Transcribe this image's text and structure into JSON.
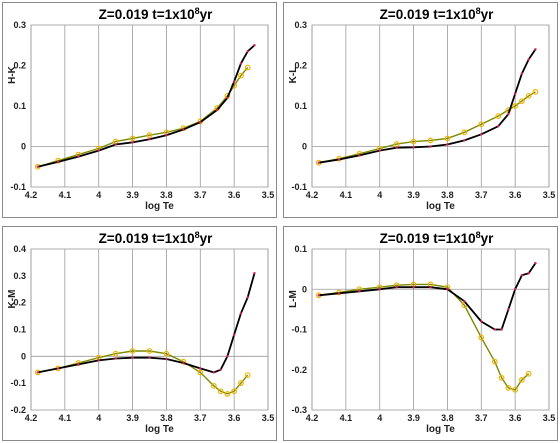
{
  "chart_data": [
    {
      "type": "line",
      "title": {
        "main": "Z=0.019   t=1x10",
        "sup": "8",
        "tail": "yr"
      },
      "xlabel": "log Te",
      "ylabel": "H-K",
      "xlim": [
        4.2,
        3.5
      ],
      "ylim": [
        -0.1,
        0.3
      ],
      "xticks": [
        4.2,
        4.1,
        4.0,
        3.9,
        3.8,
        3.7,
        3.6,
        3.5
      ],
      "xtick_labels": [
        "4.2",
        "4.1",
        "4",
        "3.9",
        "3.8",
        "3.7",
        "3.6",
        "3.5"
      ],
      "yticks": [
        -0.1,
        0,
        0.1,
        0.2,
        0.3
      ],
      "ytick_labels": [
        "-0.1",
        "0",
        "0.1",
        "0.2",
        "0.3"
      ],
      "grid": "vertical",
      "series": [
        {
          "color": "#000000",
          "marker_color": "#d81b60",
          "marker": "dot",
          "x": [
            4.18,
            4.12,
            4.06,
            4.0,
            3.95,
            3.9,
            3.85,
            3.8,
            3.75,
            3.7,
            3.65,
            3.62,
            3.6,
            3.58,
            3.56,
            3.54
          ],
          "y": [
            -0.05,
            -0.038,
            -0.025,
            -0.01,
            0.005,
            0.01,
            0.018,
            0.028,
            0.042,
            0.06,
            0.09,
            0.12,
            0.16,
            0.205,
            0.235,
            0.25
          ]
        },
        {
          "color": "#7a8a00",
          "marker_color": "#f0b400",
          "marker": "circle",
          "x": [
            4.18,
            4.12,
            4.06,
            4.0,
            3.95,
            3.9,
            3.85,
            3.8,
            3.75,
            3.7,
            3.65,
            3.62,
            3.6,
            3.58,
            3.56
          ],
          "y": [
            -0.05,
            -0.035,
            -0.02,
            -0.005,
            0.012,
            0.02,
            0.028,
            0.035,
            0.045,
            0.062,
            0.095,
            0.125,
            0.15,
            0.175,
            0.195
          ]
        }
      ]
    },
    {
      "type": "line",
      "title": {
        "main": "Z=0.019   t=1x10",
        "sup": "8",
        "tail": "yr"
      },
      "xlabel": "log Te",
      "ylabel": "K-L",
      "xlim": [
        4.2,
        3.5
      ],
      "ylim": [
        -0.1,
        0.3
      ],
      "xticks": [
        4.2,
        4.1,
        4.0,
        3.9,
        3.8,
        3.7,
        3.6,
        3.5
      ],
      "xtick_labels": [
        "4.2",
        "4.1",
        "4",
        "3.9",
        "3.8",
        "3.7",
        "3.6",
        "3.5"
      ],
      "yticks": [
        -0.1,
        0,
        0.1,
        0.2,
        0.3
      ],
      "ytick_labels": [
        "-0.1",
        "0",
        "0.1",
        "0.2",
        "0.3"
      ],
      "grid": "vertical",
      "series": [
        {
          "color": "#000000",
          "marker_color": "#d81b60",
          "marker": "dot",
          "x": [
            4.18,
            4.12,
            4.06,
            4.0,
            3.95,
            3.9,
            3.85,
            3.8,
            3.75,
            3.7,
            3.65,
            3.62,
            3.6,
            3.58,
            3.56,
            3.54
          ],
          "y": [
            -0.04,
            -0.032,
            -0.022,
            -0.01,
            -0.003,
            -0.002,
            0.0,
            0.005,
            0.015,
            0.03,
            0.05,
            0.08,
            0.13,
            0.18,
            0.215,
            0.24
          ]
        },
        {
          "color": "#7a8a00",
          "marker_color": "#f0b400",
          "marker": "circle",
          "x": [
            4.18,
            4.12,
            4.06,
            4.0,
            3.95,
            3.9,
            3.85,
            3.8,
            3.75,
            3.7,
            3.65,
            3.62,
            3.6,
            3.58,
            3.56,
            3.54
          ],
          "y": [
            -0.04,
            -0.03,
            -0.018,
            -0.005,
            0.006,
            0.012,
            0.015,
            0.02,
            0.035,
            0.055,
            0.075,
            0.09,
            0.1,
            0.112,
            0.125,
            0.135
          ]
        }
      ]
    },
    {
      "type": "line",
      "title": {
        "main": "Z=0.019   t=1x10",
        "sup": "8",
        "tail": "yr"
      },
      "xlabel": "log Te",
      "ylabel": "K-M",
      "xlim": [
        4.2,
        3.5
      ],
      "ylim": [
        -0.2,
        0.4
      ],
      "xticks": [
        4.2,
        4.1,
        4.0,
        3.9,
        3.8,
        3.7,
        3.6,
        3.5
      ],
      "xtick_labels": [
        "4.2",
        "4.1",
        "4",
        "3.9",
        "3.8",
        "3.7",
        "3.6",
        "3.5"
      ],
      "yticks": [
        -0.2,
        -0.1,
        0,
        0.1,
        0.2,
        0.3,
        0.4
      ],
      "ytick_labels": [
        "-0.2",
        "-0.1",
        "0",
        "0.1",
        "0.2",
        "0.3",
        "0.4"
      ],
      "grid": "vertical",
      "series": [
        {
          "color": "#000000",
          "marker_color": "#d81b60",
          "marker": "dot",
          "x": [
            4.18,
            4.12,
            4.06,
            4.0,
            3.95,
            3.9,
            3.85,
            3.8,
            3.75,
            3.7,
            3.66,
            3.64,
            3.62,
            3.6,
            3.58,
            3.56,
            3.54
          ],
          "y": [
            -0.06,
            -0.045,
            -0.03,
            -0.015,
            -0.008,
            -0.005,
            -0.005,
            -0.01,
            -0.025,
            -0.045,
            -0.06,
            -0.05,
            0.0,
            0.08,
            0.16,
            0.22,
            0.31
          ]
        },
        {
          "color": "#7a8a00",
          "marker_color": "#f0b400",
          "marker": "circle",
          "x": [
            4.18,
            4.12,
            4.06,
            4.0,
            3.95,
            3.9,
            3.85,
            3.8,
            3.75,
            3.7,
            3.66,
            3.64,
            3.62,
            3.6,
            3.58,
            3.56
          ],
          "y": [
            -0.06,
            -0.045,
            -0.025,
            -0.005,
            0.01,
            0.02,
            0.02,
            0.01,
            -0.02,
            -0.06,
            -0.11,
            -0.13,
            -0.14,
            -0.13,
            -0.1,
            -0.07
          ]
        }
      ]
    },
    {
      "type": "line",
      "title": {
        "main": "Z=0.019   t=1x10",
        "sup": "8",
        "tail": "yr"
      },
      "xlabel": "log Te",
      "ylabel": "L-M",
      "xlim": [
        4.2,
        3.5
      ],
      "ylim": [
        -0.3,
        0.1
      ],
      "xticks": [
        4.2,
        4.1,
        4.0,
        3.9,
        3.8,
        3.7,
        3.6,
        3.5
      ],
      "xtick_labels": [
        "4.2",
        "4.1",
        "4",
        "3.9",
        "3.8",
        "3.7",
        "3.6",
        "3.5"
      ],
      "yticks": [
        -0.3,
        -0.2,
        -0.1,
        0,
        0.1
      ],
      "ytick_labels": [
        "-0.3",
        "-0.2",
        "-0.1",
        "0",
        "0.1"
      ],
      "grid": "vertical",
      "series": [
        {
          "color": "#000000",
          "marker_color": "#d81b60",
          "marker": "dot",
          "x": [
            4.18,
            4.12,
            4.06,
            4.0,
            3.95,
            3.9,
            3.85,
            3.8,
            3.75,
            3.7,
            3.66,
            3.64,
            3.62,
            3.6,
            3.58,
            3.56,
            3.54
          ],
          "y": [
            -0.015,
            -0.01,
            -0.005,
            0.0,
            0.005,
            0.005,
            0.005,
            0.0,
            -0.03,
            -0.08,
            -0.1,
            -0.1,
            -0.05,
            0.0,
            0.035,
            0.04,
            0.065
          ]
        },
        {
          "color": "#7a8a00",
          "marker_color": "#f0b400",
          "marker": "circle",
          "x": [
            4.18,
            4.12,
            4.06,
            4.0,
            3.95,
            3.9,
            3.85,
            3.8,
            3.75,
            3.7,
            3.66,
            3.64,
            3.62,
            3.6,
            3.58,
            3.56
          ],
          "y": [
            -0.015,
            -0.008,
            0.0,
            0.005,
            0.01,
            0.012,
            0.012,
            0.005,
            -0.04,
            -0.12,
            -0.18,
            -0.22,
            -0.245,
            -0.25,
            -0.225,
            -0.21
          ]
        }
      ]
    }
  ]
}
